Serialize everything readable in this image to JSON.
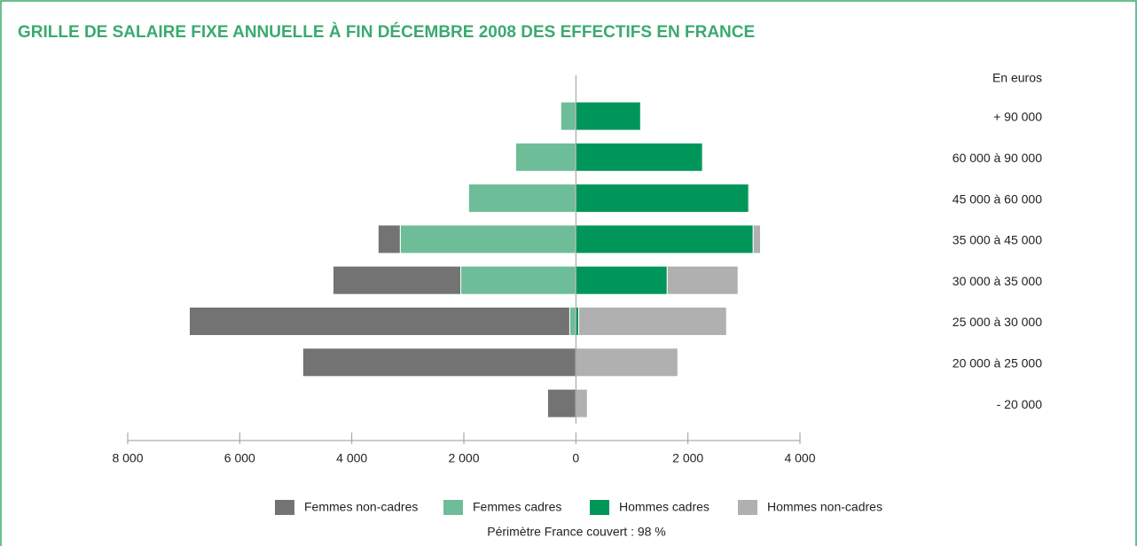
{
  "chart_data": {
    "type": "diverging_stacked_bar",
    "title": "GRILLE DE SALAIRE FIXE ANNUELLE À FIN DÉCEMBRE 2008 DES EFFECTIFS EN FRANCE",
    "unit_label": "En euros",
    "note": "Périmètre France couvert : 98 %",
    "categories": [
      "+ 90 000",
      "60 000 à 90 000",
      "45 000 à 60 000",
      "35 000 à 45 000",
      "30 000 à 35 000",
      "25 000 à 30 000",
      "20 000 à 25 000",
      "- 20 000"
    ],
    "series": [
      {
        "name": "Femmes non-cadres",
        "color": "#737373",
        "values": [
          0,
          0,
          0,
          -395,
          -2280,
          -6790,
          -4875,
          -505
        ]
      },
      {
        "name": "Femmes cadres",
        "color": "#6dbd98",
        "values": [
          -270,
          -1075,
          -1915,
          -3135,
          -2055,
          -110,
          0,
          0
        ]
      },
      {
        "name": "Hommes cadres",
        "color": "#00965a",
        "values": [
          1155,
          2260,
          3085,
          3165,
          1630,
          50,
          0,
          0
        ]
      },
      {
        "name": "Hommes non-cadres",
        "color": "#b0b0b0",
        "values": [
          0,
          0,
          20,
          130,
          1265,
          2640,
          1820,
          205
        ]
      }
    ],
    "xlim": [
      -8000,
      4000
    ],
    "xticks": [
      {
        "value": -8000,
        "label": "8 000"
      },
      {
        "value": -6000,
        "label": "6 000"
      },
      {
        "value": -4000,
        "label": "4 000"
      },
      {
        "value": -2000,
        "label": "2 000"
      },
      0,
      {
        "value": 2000,
        "label": "2 000"
      },
      {
        "value": 4000,
        "label": "4 000"
      }
    ],
    "title_color": "#3aaa6f"
  }
}
